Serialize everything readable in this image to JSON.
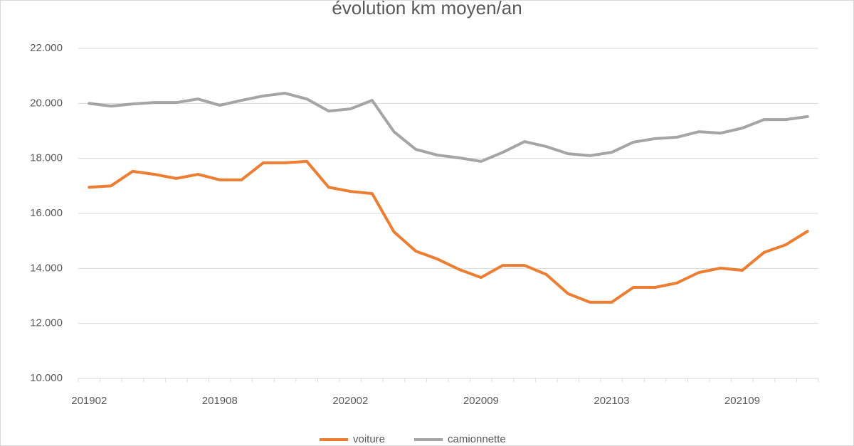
{
  "chart_data": {
    "type": "line",
    "title": "évolution km moyen/an",
    "categories": [
      "201902",
      null,
      null,
      null,
      null,
      null,
      "201908",
      null,
      null,
      null,
      null,
      null,
      "202002",
      null,
      null,
      null,
      null,
      null,
      "202009",
      null,
      null,
      null,
      null,
      null,
      "202103",
      null,
      null,
      null,
      null,
      null,
      "202109",
      null,
      null,
      null
    ],
    "series": [
      {
        "name": "voiture",
        "color": "#ed7d31",
        "values": [
          16950,
          17000,
          17530,
          17420,
          17270,
          17420,
          17220,
          17220,
          17840,
          17840,
          17890,
          16950,
          16800,
          16720,
          15330,
          14630,
          14340,
          13960,
          13670,
          14110,
          14110,
          13780,
          13080,
          12770,
          12770,
          13310,
          13310,
          13470,
          13850,
          14010,
          13930,
          14580,
          14860,
          15350
        ]
      },
      {
        "name": "camionnette",
        "color": "#a5a5a5",
        "values": [
          20000,
          19900,
          19980,
          20030,
          20030,
          20160,
          19930,
          20110,
          20270,
          20370,
          20160,
          19720,
          19800,
          20110,
          18970,
          18330,
          18120,
          18020,
          17890,
          18220,
          18610,
          18430,
          18170,
          18100,
          18220,
          18590,
          18720,
          18770,
          18970,
          18920,
          19100,
          19410,
          19410,
          19520
        ]
      }
    ],
    "ylim": [
      10000,
      22000
    ],
    "yticks": [
      {
        "value": 10000,
        "label": "10.000"
      },
      {
        "value": 12000,
        "label": "12.000"
      },
      {
        "value": 14000,
        "label": "14.000"
      },
      {
        "value": 16000,
        "label": "16.000"
      },
      {
        "value": 18000,
        "label": "18.000"
      },
      {
        "value": 20000,
        "label": "20.000"
      },
      {
        "value": 22000,
        "label": "22.000"
      }
    ],
    "grid": true,
    "legend": "bottom"
  }
}
